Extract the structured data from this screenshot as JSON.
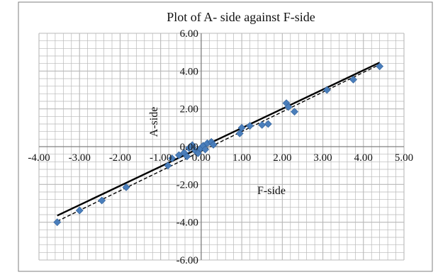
{
  "chart_data": {
    "type": "scatter",
    "title": "Plot of A- side against F-side",
    "xlabel": "F-side",
    "ylabel": "A-side",
    "xlim": [
      -4,
      5
    ],
    "ylim": [
      -6,
      6
    ],
    "x_ticks": [
      "-4.00",
      "-3.00",
      "-2.00",
      "-1.00",
      "0.00",
      "1.00",
      "2.00",
      "3.00",
      "4.00",
      "5.00"
    ],
    "y_ticks": [
      "-6.00",
      "-4.00",
      "-2.00",
      "0.00",
      "2.00",
      "4.00",
      "6.00"
    ],
    "x_tick_values": [
      -4,
      -3,
      -2,
      -1,
      0,
      1,
      2,
      3,
      4,
      5
    ],
    "y_tick_values": [
      -6,
      -4,
      -2,
      0,
      2,
      4,
      6
    ],
    "grid": true,
    "legend": "none",
    "colors": {
      "points": "#4a7ebb",
      "trend_solid": "#000000",
      "trend_dashed": "#000000",
      "grid": "#b8b8b8",
      "axis": "#808080",
      "border": "#7f7f7f"
    },
    "points": [
      {
        "x": -3.55,
        "y": -4.0
      },
      {
        "x": -3.0,
        "y": -3.38
      },
      {
        "x": -2.45,
        "y": -2.85
      },
      {
        "x": -1.85,
        "y": -2.15
      },
      {
        "x": -0.82,
        "y": -1.0
      },
      {
        "x": -0.72,
        "y": -0.62
      },
      {
        "x": -0.55,
        "y": -0.45
      },
      {
        "x": -0.42,
        "y": -0.32
      },
      {
        "x": -0.35,
        "y": -0.52
      },
      {
        "x": -0.3,
        "y": -0.08
      },
      {
        "x": -0.22,
        "y": 0.08
      },
      {
        "x": -0.15,
        "y": -0.2
      },
      {
        "x": -0.08,
        "y": -0.35
      },
      {
        "x": -0.02,
        "y": -0.1
      },
      {
        "x": 0.05,
        "y": 0.05
      },
      {
        "x": 0.1,
        "y": -0.15
      },
      {
        "x": 0.15,
        "y": 0.18
      },
      {
        "x": 0.25,
        "y": 0.25
      },
      {
        "x": 0.3,
        "y": 0.1
      },
      {
        "x": 0.95,
        "y": 0.7
      },
      {
        "x": 1.0,
        "y": 1.0
      },
      {
        "x": 1.2,
        "y": 1.1
      },
      {
        "x": 1.5,
        "y": 1.15
      },
      {
        "x": 1.65,
        "y": 1.2
      },
      {
        "x": 2.1,
        "y": 2.3
      },
      {
        "x": 2.15,
        "y": 2.1
      },
      {
        "x": 2.3,
        "y": 1.85
      },
      {
        "x": 3.1,
        "y": 3.0
      },
      {
        "x": 3.75,
        "y": 3.55
      },
      {
        "x": 4.4,
        "y": 4.25
      }
    ],
    "trendlines": [
      {
        "style": "solid",
        "x": [
          -3.55,
          4.4
        ],
        "y": [
          -3.65,
          4.45
        ]
      },
      {
        "style": "dashed",
        "x": [
          -3.55,
          4.4
        ],
        "y": [
          -3.95,
          4.35
        ]
      }
    ]
  }
}
